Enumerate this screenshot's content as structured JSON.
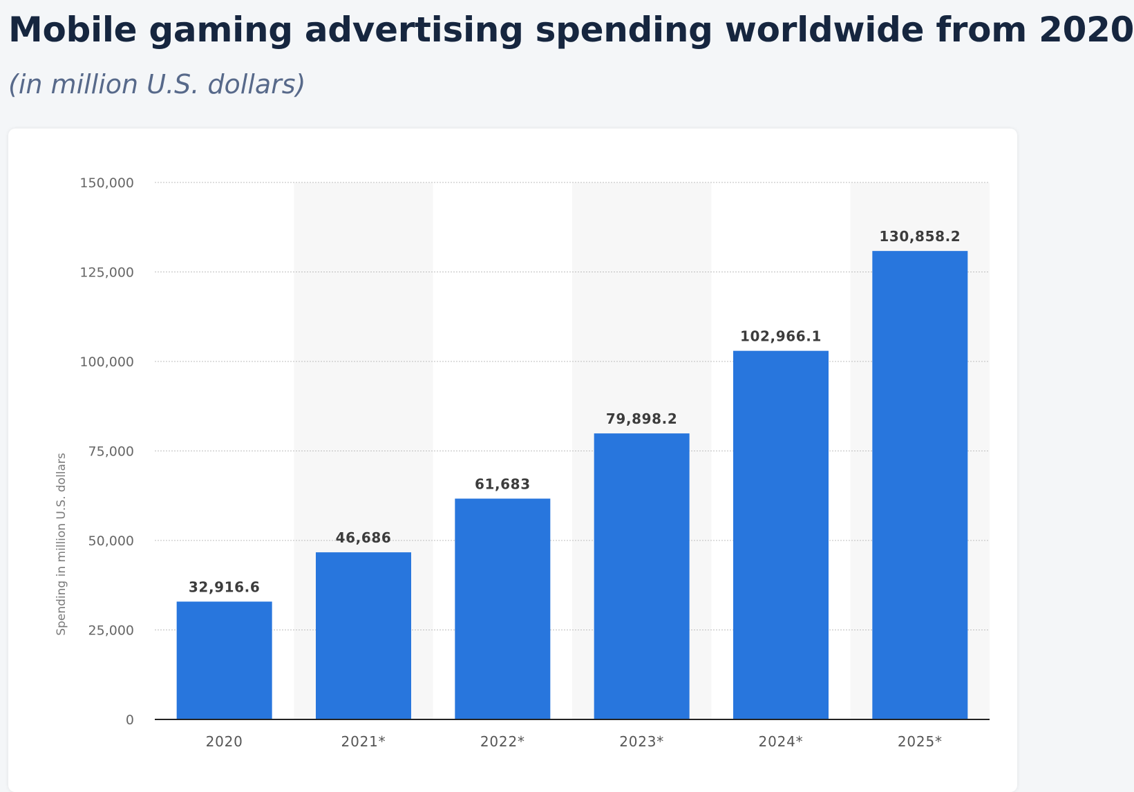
{
  "header": {
    "title": "Mobile gaming advertising spending worldwide from 2020",
    "subtitle": "(in million U.S. dollars)"
  },
  "colors": {
    "bar": "#2876dd",
    "band": "#f7f7f7",
    "grid": "#bdbdbd",
    "baseline": "#222222"
  },
  "chart_data": {
    "type": "bar",
    "categories": [
      "2020",
      "2021*",
      "2022*",
      "2023*",
      "2024*",
      "2025*"
    ],
    "values": [
      32916.6,
      46686,
      61683,
      79898.2,
      102966.1,
      130858.2
    ],
    "value_labels": [
      "32,916.6",
      "46,686",
      "61,683",
      "79,898.2",
      "102,966.1",
      "130,858.2"
    ],
    "title": "Mobile gaming advertising spending worldwide from 2020",
    "subtitle": "(in million U.S. dollars)",
    "xlabel": "",
    "ylabel": "Spending in million U.S. dollars",
    "ylim": [
      0,
      150000
    ],
    "yticks": [
      0,
      25000,
      50000,
      75000,
      100000,
      125000,
      150000
    ],
    "ytick_labels": [
      "0",
      "25,000",
      "50,000",
      "75,000",
      "100,000",
      "125,000",
      "150,000"
    ],
    "grid": true,
    "legend": "none"
  }
}
